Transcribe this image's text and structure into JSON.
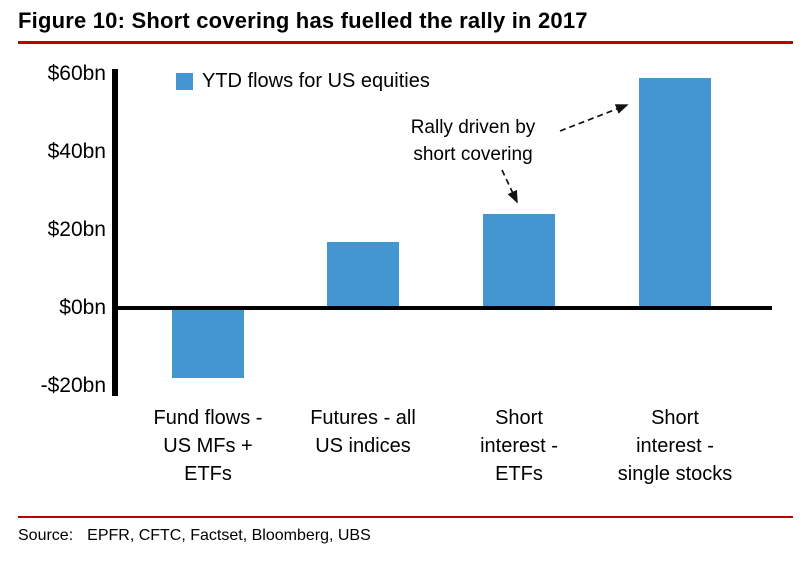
{
  "header": {
    "title": "Figure 10: Short covering has fuelled the rally in 2017"
  },
  "legend": {
    "label": "YTD flows for US equities"
  },
  "annotation": {
    "lines": [
      "Rally driven by",
      "short covering"
    ]
  },
  "source": {
    "prefix": "Source:",
    "text": "EPFR, CFTC, Factset, Bloomberg, UBS"
  },
  "colors": {
    "bar": "#4396CF",
    "accent_red": "#C00000",
    "axis": "#000000"
  },
  "chart_data": {
    "type": "bar",
    "title": "Figure 10: Short covering has fuelled the rally in 2017",
    "legend": "YTD flows for US equities",
    "legend_position": "top-left-inside",
    "categories": [
      "Fund flows - US MFs + ETFs",
      "Futures - all US indices",
      "Short interest - ETFs",
      "Short interest - single stocks"
    ],
    "categories_display": [
      [
        "Fund flows -",
        "US MFs +",
        "ETFs"
      ],
      [
        "Futures - all",
        "US indices"
      ],
      [
        "Short",
        "interest -",
        "ETFs"
      ],
      [
        "Short",
        "interest -",
        "single stocks"
      ]
    ],
    "values": [
      -18,
      17,
      24,
      59
    ],
    "unit": "bn USD",
    "xlabel": "",
    "ylabel": "",
    "ylim": [
      -20,
      60
    ],
    "yticks": [
      60,
      40,
      20,
      0,
      -20
    ],
    "ytick_labels": [
      "$60bn",
      "$40bn",
      "$20bn",
      "$0bn",
      "-$20bn"
    ],
    "grid": false,
    "annotation": "Rally driven by short covering"
  }
}
